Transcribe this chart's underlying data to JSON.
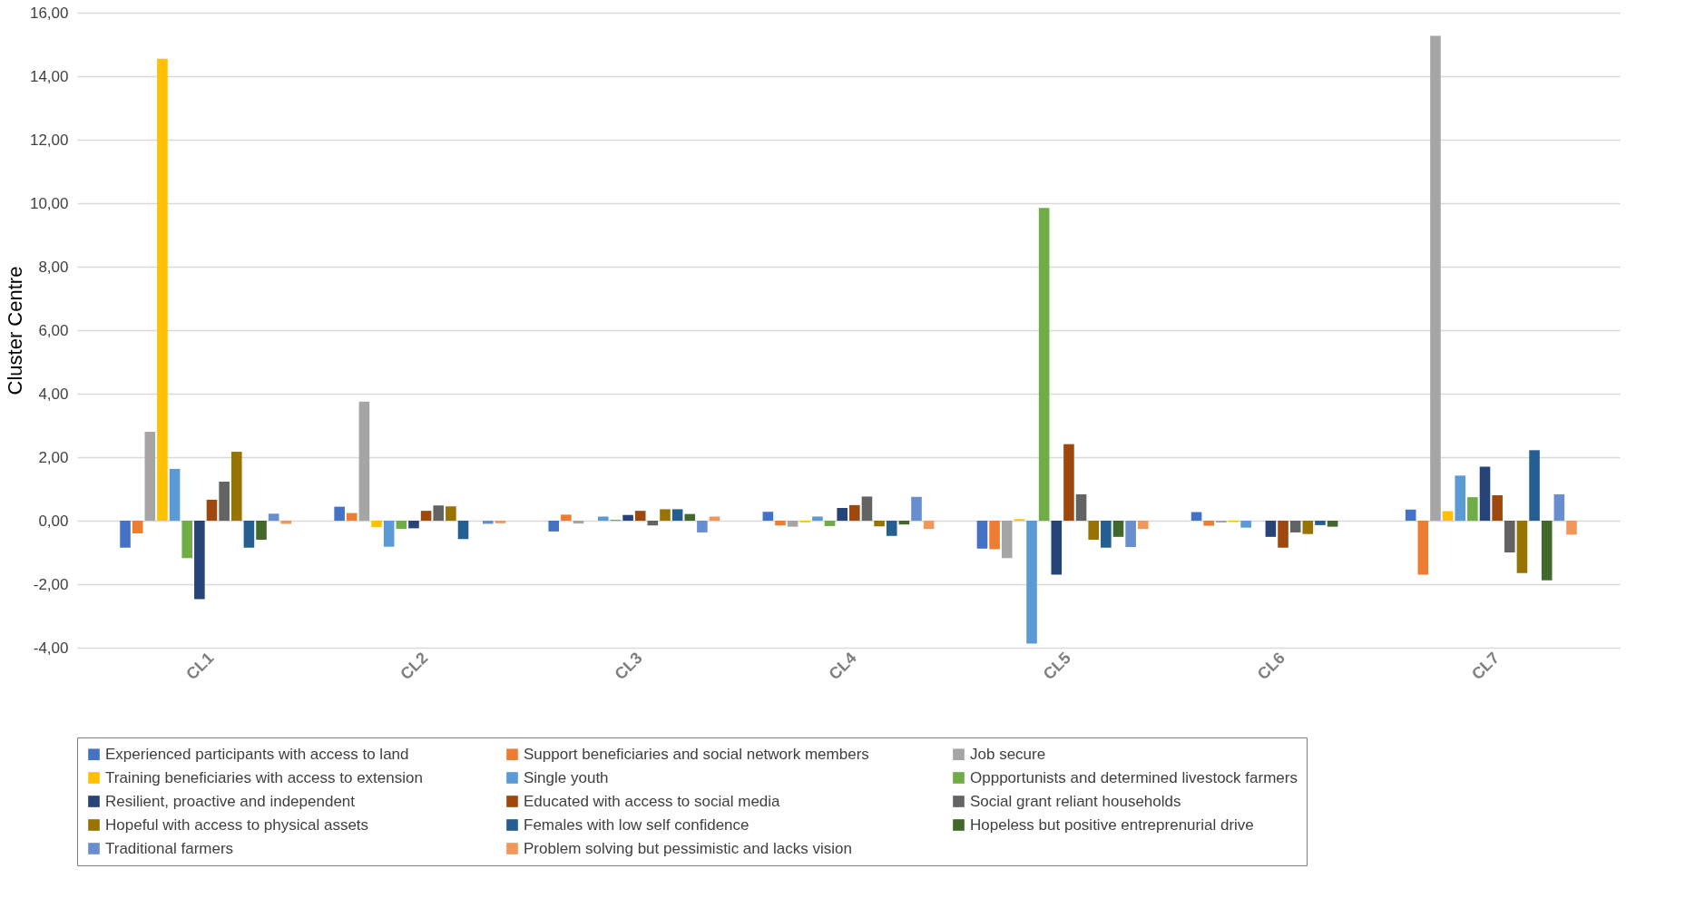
{
  "chart_data": {
    "type": "bar",
    "ylabel": "Cluster Centre",
    "categories": [
      "CL1",
      "CL2",
      "CL3",
      "CL4",
      "CL5",
      "CL6",
      "CL7"
    ],
    "ylim": [
      -4,
      16
    ],
    "yticks": [
      {
        "value": -4,
        "label": "-4,00"
      },
      {
        "value": -2,
        "label": "-2,00"
      },
      {
        "value": 0,
        "label": "0,00"
      },
      {
        "value": 2,
        "label": "2,00"
      },
      {
        "value": 4,
        "label": "4,00"
      },
      {
        "value": 6,
        "label": "6,00"
      },
      {
        "value": 8,
        "label": "8,00"
      },
      {
        "value": 10,
        "label": "10,00"
      },
      {
        "value": 12,
        "label": "12,00"
      },
      {
        "value": 14,
        "label": "14,00"
      },
      {
        "value": 16,
        "label": "16,00"
      }
    ],
    "grid": "y",
    "legend": "bottom",
    "series": [
      {
        "name": "Experienced participants with access to land",
        "color": "#4472c4",
        "values": [
          -0.85,
          0.44,
          -0.34,
          0.28,
          -0.88,
          0.27,
          0.35
        ]
      },
      {
        "name": "Support beneficiaries and social network members",
        "color": "#ed7d31",
        "values": [
          -0.4,
          0.24,
          0.19,
          -0.15,
          -0.9,
          -0.16,
          -1.7
        ]
      },
      {
        "name": "Job secure",
        "color": "#a5a5a5",
        "values": [
          2.8,
          3.75,
          -0.09,
          -0.19,
          -1.18,
          -0.06,
          15.27
        ]
      },
      {
        "name": "Training beneficiaries with access to extension",
        "color": "#ffc000",
        "values": [
          14.55,
          -0.2,
          null,
          -0.05,
          0.05,
          -0.04,
          0.3
        ]
      },
      {
        "name": "Single youth",
        "color": "#5b9bd5",
        "values": [
          1.63,
          -0.82,
          0.13,
          0.13,
          -3.87,
          -0.22,
          1.42
        ]
      },
      {
        "name": "Oppportunists and determined livestock farmers",
        "color": "#70ad47",
        "values": [
          -1.18,
          -0.26,
          0.03,
          -0.17,
          9.85,
          null,
          0.74
        ]
      },
      {
        "name": "Resilient, proactive and independent",
        "color": "#264478",
        "values": [
          -2.47,
          -0.24,
          0.18,
          0.4,
          -1.7,
          -0.51,
          1.7
        ]
      },
      {
        "name": "Educated with access to social media",
        "color": "#9e480e",
        "values": [
          0.66,
          0.31,
          0.31,
          0.49,
          2.41,
          -0.85,
          0.8
        ]
      },
      {
        "name": "Social grant reliant households",
        "color": "#636363",
        "values": [
          1.23,
          0.48,
          -0.15,
          0.76,
          0.83,
          -0.37,
          -1.0
        ]
      },
      {
        "name": "Hopeful with access to physical assets",
        "color": "#997300",
        "values": [
          2.17,
          0.45,
          0.36,
          -0.18,
          -0.6,
          -0.42,
          -1.65
        ]
      },
      {
        "name": "Females with low self confidence",
        "color": "#255e91",
        "values": [
          -0.85,
          -0.58,
          0.36,
          -0.48,
          -0.85,
          -0.14,
          2.22
        ]
      },
      {
        "name": "Hopeless but positive entreprenurial drive",
        "color": "#43682b",
        "values": [
          -0.6,
          null,
          0.21,
          -0.12,
          -0.51,
          -0.19,
          -1.88
        ]
      },
      {
        "name": "Traditional farmers",
        "color": "#698ed0",
        "values": [
          0.22,
          -0.1,
          -0.37,
          0.75,
          -0.83,
          null,
          0.83
        ]
      },
      {
        "name": "Problem solving but pessimistic and lacks vision",
        "color": "#f1975a",
        "values": [
          -0.1,
          -0.08,
          0.13,
          -0.26,
          -0.26,
          null,
          -0.44
        ]
      }
    ]
  }
}
